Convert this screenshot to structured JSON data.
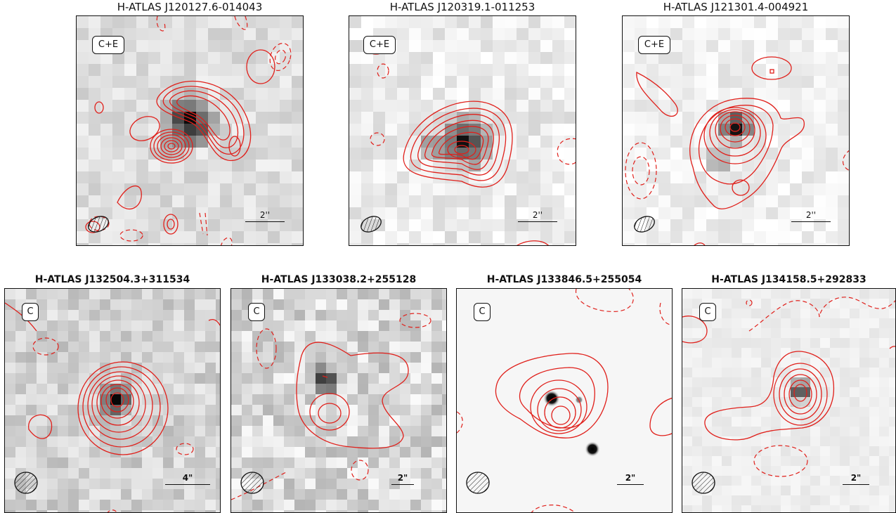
{
  "panels": [
    {
      "id": "p1",
      "title": "H-ATLAS J120127.6-014043",
      "badge": "C+E",
      "scale": "2''"
    },
    {
      "id": "p2",
      "title": "H-ATLAS J120319.1-011253",
      "badge": "C+E",
      "scale": "2''"
    },
    {
      "id": "p3",
      "title": "H-ATLAS J121301.4-004921",
      "badge": "C+E",
      "scale": "2''"
    },
    {
      "id": "p4",
      "title": "H-ATLAS J132504.3+311534",
      "badge": "C",
      "scale": "4\""
    },
    {
      "id": "p5",
      "title": "H-ATLAS J133038.2+255128",
      "badge": "C",
      "scale": "2\""
    },
    {
      "id": "p6",
      "title": "H-ATLAS J133846.5+255054",
      "badge": "C",
      "scale": "2\""
    },
    {
      "id": "p7",
      "title": "H-ATLAS J134158.5+292833",
      "badge": "C",
      "scale": "2\""
    }
  ],
  "colors": {
    "contour": "#e0201b",
    "frame": "#111111"
  }
}
